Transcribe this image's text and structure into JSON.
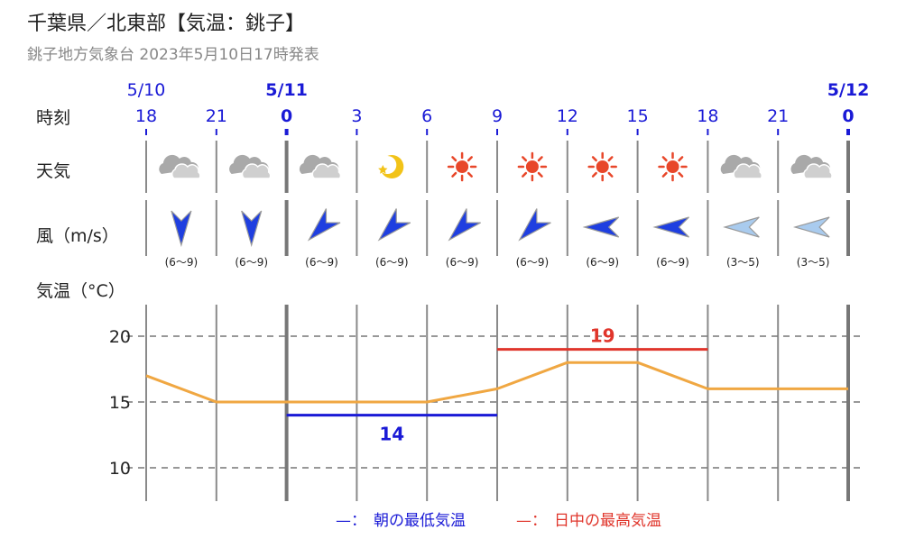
{
  "header": {
    "title": "千葉県／北東部【気温：銚子】",
    "subtitle": "銚子地方気象台 2023年5月10日17時発表"
  },
  "row_labels": {
    "time": "時刻",
    "weather": "天気",
    "wind": "風（m/s）",
    "temp": "気温（°C）"
  },
  "date_labels": [
    "5/10",
    "5/11",
    "5/12"
  ],
  "colors": {
    "blue": "#1a1ad6",
    "red": "#e0352b",
    "line": "#f0a742",
    "wind_strong": "#1f3fe0",
    "wind_light": "#a9cbee",
    "grid": "#555555",
    "sun": "#e8472a",
    "moon": "#f2c318",
    "cloud": "#bdbdbd"
  },
  "chart_data": {
    "type": "line",
    "x": [
      "18",
      "21",
      "0",
      "3",
      "6",
      "9",
      "12",
      "15",
      "18",
      "21",
      "0"
    ],
    "dates": [
      "5/10",
      "",
      "5/11",
      "",
      "",
      "",
      "",
      "",
      "",
      "",
      "5/12"
    ],
    "weather": [
      "cloudy",
      "cloudy",
      "cloudy",
      "clear-night",
      "sunny",
      "sunny",
      "sunny",
      "sunny",
      "cloudy",
      "cloudy"
    ],
    "wind": [
      {
        "dir": "N",
        "speed": "(6～9)",
        "strength": "strong"
      },
      {
        "dir": "N",
        "speed": "(6～9)",
        "strength": "strong"
      },
      {
        "dir": "NE",
        "speed": "(6～9)",
        "strength": "strong"
      },
      {
        "dir": "NE",
        "speed": "(6～9)",
        "strength": "strong"
      },
      {
        "dir": "NE",
        "speed": "(6～9)",
        "strength": "strong"
      },
      {
        "dir": "NE",
        "speed": "(6～9)",
        "strength": "strong"
      },
      {
        "dir": "E",
        "speed": "(6～9)",
        "strength": "strong"
      },
      {
        "dir": "E",
        "speed": "(6～9)",
        "strength": "strong"
      },
      {
        "dir": "E",
        "speed": "(3～5)",
        "strength": "light"
      },
      {
        "dir": "E",
        "speed": "(3～5)",
        "strength": "light"
      }
    ],
    "series": [
      {
        "values": [
          17,
          15,
          15,
          15,
          15,
          16,
          18,
          18,
          16,
          16,
          16
        ]
      }
    ],
    "min_temp": {
      "value": 14,
      "label": "14",
      "from_index": 2,
      "to_index": 5
    },
    "max_temp": {
      "value": 19,
      "label": "19",
      "from_index": 5,
      "to_index": 8
    },
    "y_ticks": [
      20,
      15,
      10
    ],
    "ylim": [
      8.5,
      22.5
    ],
    "grid": true,
    "legend": [
      {
        "mark": "—：",
        "text": "朝の最低気温",
        "color_key": "blue"
      },
      {
        "mark": "—：",
        "text": "日中の最高気温",
        "color_key": "red"
      }
    ]
  }
}
